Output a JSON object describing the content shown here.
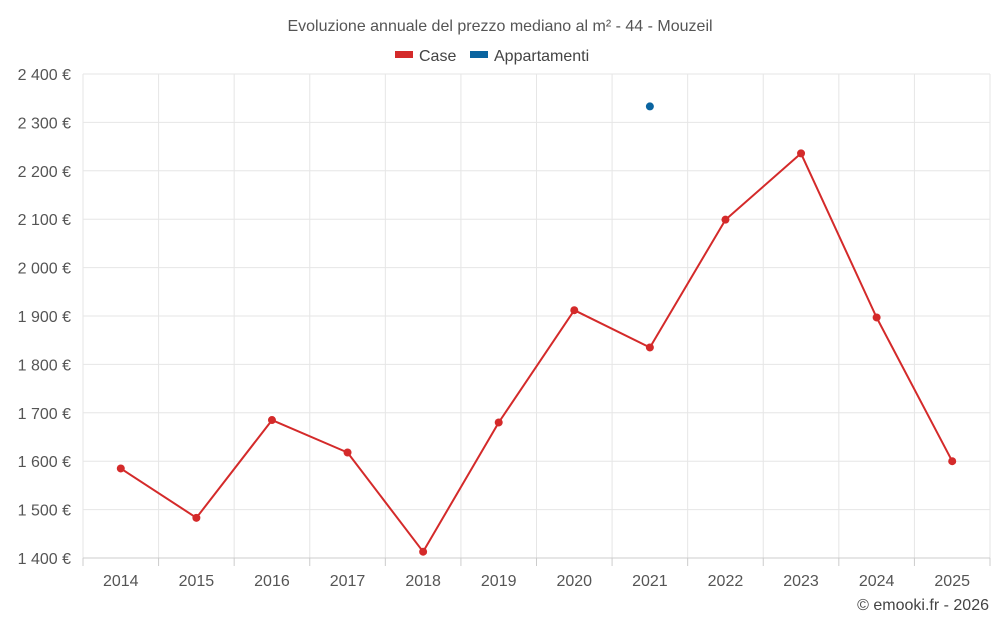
{
  "chart_data": {
    "type": "line",
    "title": "Evoluzione annuale del prezzo mediano al m² - 44 - Mouzeil",
    "categories": [
      "2014",
      "2015",
      "2016",
      "2017",
      "2018",
      "2019",
      "2020",
      "2021",
      "2022",
      "2023",
      "2024",
      "2025"
    ],
    "series": [
      {
        "name": "Case",
        "color": "#d42a2a",
        "values": [
          1585,
          1483,
          1685,
          1618,
          1413,
          1680,
          1912,
          1835,
          2099,
          2236,
          1897,
          1600
        ]
      },
      {
        "name": "Appartamenti",
        "color": "#0a64a0",
        "values": [
          null,
          null,
          null,
          null,
          null,
          null,
          null,
          2333,
          null,
          null,
          null,
          null
        ]
      }
    ],
    "y_ticks": [
      "1 400 €",
      "1 500 €",
      "1 600 €",
      "1 700 €",
      "1 800 €",
      "1 900 €",
      "2 000 €",
      "2 100 €",
      "2 200 €",
      "2 300 €",
      "2 400 €"
    ],
    "ylim": [
      1400,
      2400
    ],
    "grid": true,
    "legend_position": "top-center",
    "credit": "© emooki.fr - 2026"
  }
}
